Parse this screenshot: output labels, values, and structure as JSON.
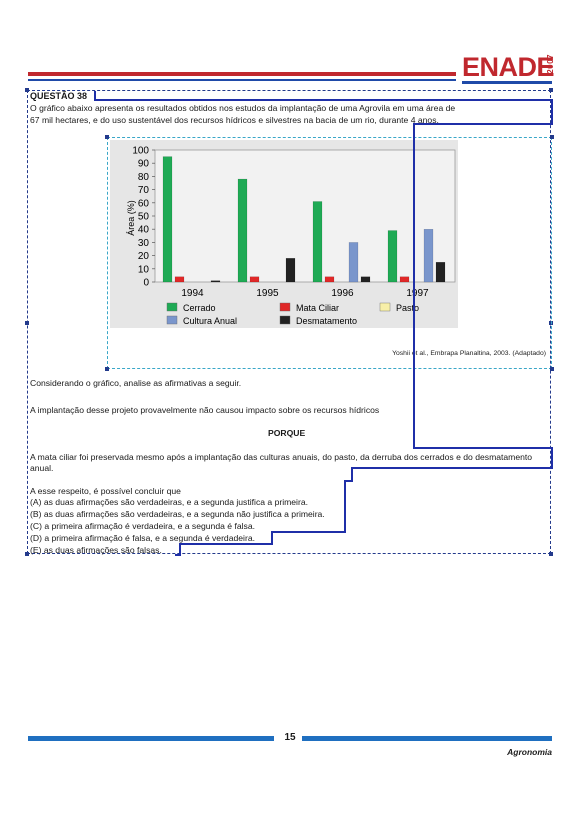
{
  "header": {
    "logo_text": "ENADE",
    "logo_year": "2007",
    "brand_colors": {
      "red": "#c0282e",
      "blue": "#1f4aa8"
    }
  },
  "question": {
    "title": "QUESTÃO 38",
    "intro_line1": "O gráfico abaixo apresenta os resultados obtidos nos estudos da implantação de uma Agrovila em uma área de",
    "intro_line2": "67 mil hectares, e do uso sustentável dos recursos hídricos e silvestres na bacia de um rio, durante 4 anos.",
    "source": "Yoshii et al., Embrapa Planaltina, 2003. (Adaptado)",
    "prompt": "Considerando o gráfico, analise as afirmativas a seguir.",
    "assertion1": "A implantação desse projeto provavelmente não causou impacto sobre os recursos hídricos",
    "connector": "PORQUE",
    "assertion2_line1": "A mata ciliar foi preservada mesmo após a implantação das culturas anuais, do pasto, da derruba dos cerrados e do desmatamento",
    "assertion2_line2": "anual.",
    "lead": "A esse respeito, é possível concluir que",
    "options": [
      "(A)  as duas afirmações são verdadeiras, e a segunda justifica a primeira.",
      "(B)  as duas afirmações são verdadeiras, e a segunda não justifica a primeira.",
      "(C)  a primeira afirmação é verdadeira, e a segunda é falsa.",
      "(D)  a primeira afirmação é falsa, e a segunda é verdadeira.",
      "(E)  as duas afirmações são falsas."
    ]
  },
  "chart_data": {
    "type": "bar",
    "categories": [
      "1994",
      "1995",
      "1996",
      "1997"
    ],
    "ylabel": "Área (%)",
    "ylim": [
      0,
      100
    ],
    "yticks": [
      "0",
      "10",
      "20",
      "30",
      "40",
      "50",
      "60",
      "70",
      "80",
      "90",
      "100"
    ],
    "series": [
      {
        "name": "Cerrado",
        "color": "#1faa55",
        "values": [
          95,
          78,
          61,
          39
        ]
      },
      {
        "name": "Mata Ciliar",
        "color": "#e02828",
        "values": [
          4,
          4,
          4,
          4
        ]
      },
      {
        "name": "Pasto",
        "color": "#f7efa8",
        "values": [
          0,
          0,
          0,
          0
        ]
      },
      {
        "name": "Cultura Anual",
        "color": "#7a96cc",
        "values": [
          0,
          0,
          30,
          40
        ]
      },
      {
        "name": "Desmatamento",
        "color": "#222222",
        "values": [
          1,
          18,
          4,
          15
        ]
      }
    ],
    "legend_position": "bottom",
    "grid": false
  },
  "footer": {
    "page_number": "15",
    "course": "Agronomia"
  }
}
